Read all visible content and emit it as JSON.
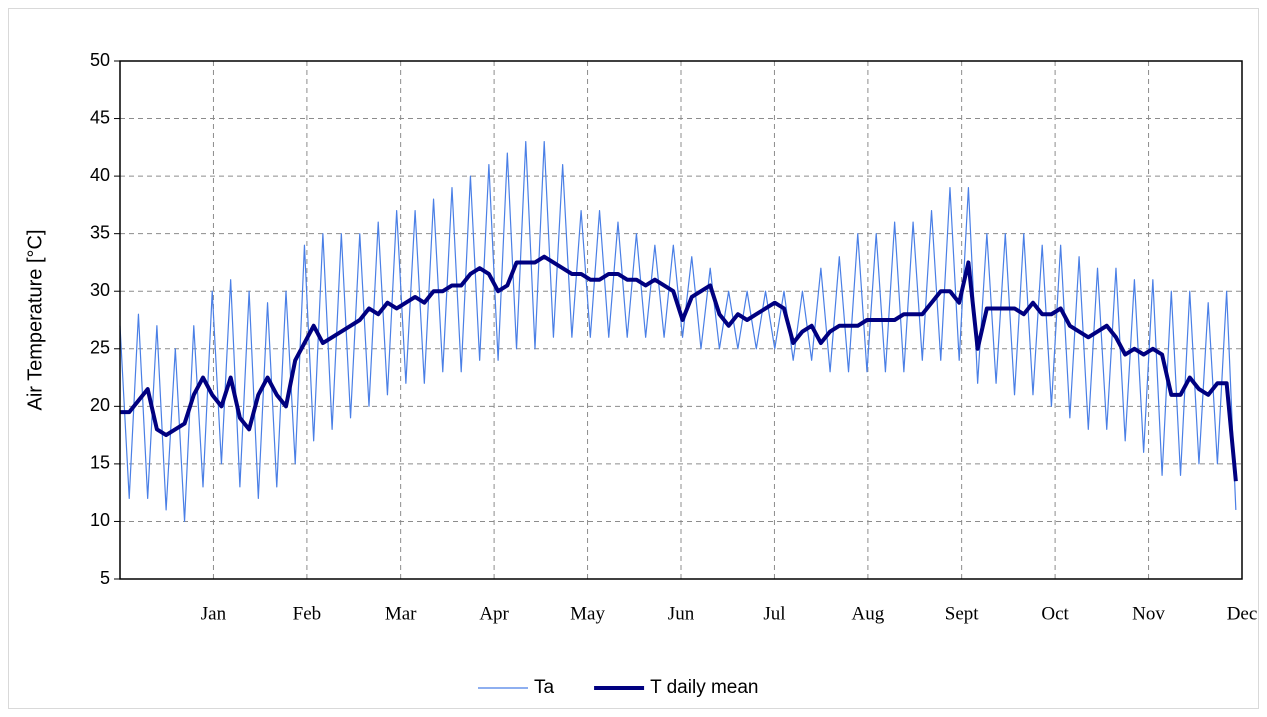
{
  "chart_data": {
    "type": "line",
    "ylabel": "Air Temperature [°C]",
    "x": [
      0,
      3,
      6,
      9,
      12,
      15,
      18,
      21,
      24,
      27,
      30,
      33,
      36,
      39,
      42,
      45,
      48,
      51,
      54,
      57,
      60,
      63,
      66,
      69,
      72,
      75,
      78,
      81,
      84,
      87,
      90,
      93,
      96,
      99,
      102,
      105,
      108,
      111,
      114,
      117,
      120,
      123,
      126,
      129,
      132,
      135,
      138,
      141,
      144,
      147,
      150,
      153,
      156,
      159,
      162,
      165,
      168,
      171,
      174,
      177,
      180,
      183,
      186,
      189,
      192,
      195,
      198,
      201,
      204,
      207,
      210,
      213,
      216,
      219,
      222,
      225,
      228,
      231,
      234,
      237,
      240,
      243,
      246,
      249,
      252,
      255,
      258,
      261,
      264,
      267,
      270,
      273,
      276,
      279,
      282,
      285,
      288,
      291,
      294,
      297,
      300,
      303,
      306,
      309,
      312,
      315,
      318,
      321,
      324,
      327,
      330,
      333,
      336,
      339,
      342,
      345,
      348,
      351,
      354,
      357,
      360,
      363
    ],
    "series": [
      {
        "name": "Ta",
        "color": "#4a7fe6",
        "width": 1.2,
        "values": [
          27,
          12,
          28,
          12,
          27,
          11,
          25,
          10,
          27,
          13,
          30,
          15,
          31,
          13,
          30,
          12,
          29,
          13,
          30,
          15,
          34,
          17,
          35,
          18,
          35,
          19,
          35,
          20,
          36,
          21,
          37,
          22,
          37,
          22,
          38,
          23,
          39,
          23,
          40,
          24,
          41,
          24,
          42,
          25,
          43,
          25,
          43,
          26,
          41,
          26,
          37,
          26,
          37,
          26,
          36,
          26,
          35,
          26,
          34,
          26,
          34,
          26,
          33,
          25,
          32,
          25,
          30,
          25,
          30,
          25,
          30,
          25,
          30,
          24,
          30,
          24,
          32,
          23,
          33,
          23,
          35,
          23,
          35,
          23,
          36,
          23,
          36,
          24,
          37,
          24,
          39,
          24,
          39,
          22,
          35,
          22,
          35,
          21,
          35,
          21,
          34,
          20,
          34,
          19,
          33,
          18,
          32,
          18,
          32,
          17,
          31,
          16,
          31,
          14,
          30,
          14,
          30,
          15,
          29,
          15,
          30,
          11
        ]
      },
      {
        "name": "T daily mean",
        "color": "#000080",
        "width": 4,
        "values": [
          19.5,
          19.5,
          20.5,
          21.5,
          18,
          17.5,
          18,
          18.5,
          21,
          22.5,
          21,
          20,
          22.5,
          19,
          18,
          21,
          22.5,
          21,
          20,
          24,
          25.5,
          27,
          25.5,
          26,
          26.5,
          27,
          27.5,
          28.5,
          28,
          29,
          28.5,
          29,
          29.5,
          29,
          30,
          30,
          30.5,
          30.5,
          31.5,
          32,
          31.5,
          30,
          30.5,
          32.5,
          32.5,
          32.5,
          33,
          32.5,
          32,
          31.5,
          31.5,
          31,
          31,
          31.5,
          31.5,
          31,
          31,
          30.5,
          31,
          30.5,
          30,
          27.5,
          29.5,
          30,
          30.5,
          28,
          27,
          28,
          27.5,
          28,
          28.5,
          29,
          28.5,
          25.5,
          26.5,
          27,
          25.5,
          26.5,
          27,
          27,
          27,
          27.5,
          27.5,
          27.5,
          27.5,
          28,
          28,
          28,
          29,
          30,
          30,
          29,
          32.5,
          25,
          28.5,
          28.5,
          28.5,
          28.5,
          28,
          29,
          28,
          28,
          28.5,
          27,
          26.5,
          26,
          26.5,
          27,
          26,
          24.5,
          25,
          24.5,
          25,
          24.5,
          21,
          21,
          22.5,
          21.5,
          21,
          22,
          22,
          13.5
        ]
      }
    ],
    "xlim": [
      0,
      365
    ],
    "xticks": [
      {
        "value": 30.4,
        "label": "Jan"
      },
      {
        "value": 60.8,
        "label": "Feb"
      },
      {
        "value": 91.3,
        "label": "Mar"
      },
      {
        "value": 121.7,
        "label": "Apr"
      },
      {
        "value": 152.1,
        "label": "May"
      },
      {
        "value": 182.5,
        "label": "Jun"
      },
      {
        "value": 212.9,
        "label": "Jul"
      },
      {
        "value": 243.3,
        "label": "Aug"
      },
      {
        "value": 273.8,
        "label": "Sept"
      },
      {
        "value": 304.2,
        "label": "Oct"
      },
      {
        "value": 334.6,
        "label": "Nov"
      },
      {
        "value": 365,
        "label": "Dec"
      }
    ],
    "ylim": [
      5,
      50
    ],
    "yticks": [
      5,
      10,
      15,
      20,
      25,
      30,
      35,
      40,
      45,
      50
    ],
    "grid": true,
    "legend": "bottom"
  }
}
